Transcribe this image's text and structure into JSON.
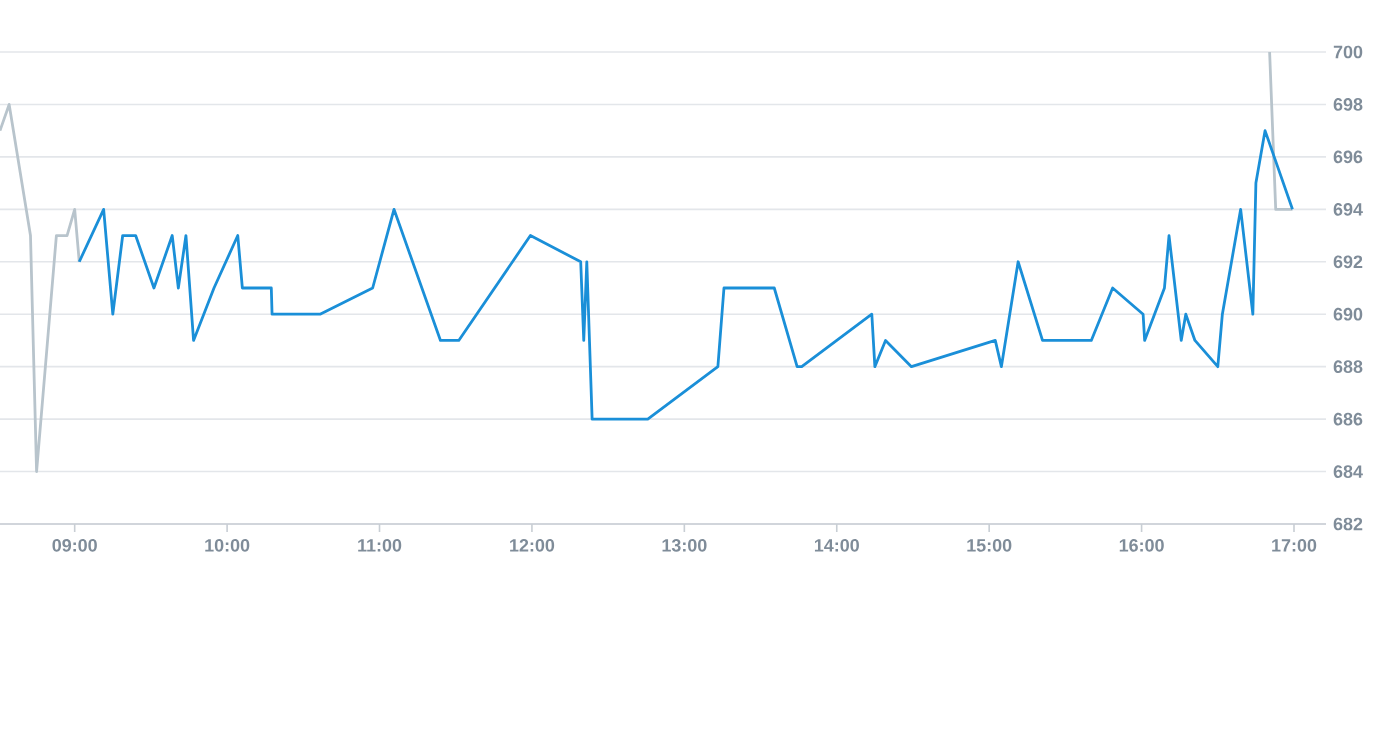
{
  "chart_data": {
    "type": "line",
    "xlim": [
      8.51,
      17.21
    ],
    "ylim": [
      682,
      700
    ],
    "xticks": [
      {
        "value": 9,
        "label": "09:00"
      },
      {
        "value": 10,
        "label": "10:00"
      },
      {
        "value": 11,
        "label": "11:00"
      },
      {
        "value": 12,
        "label": "12:00"
      },
      {
        "value": 13,
        "label": "13:00"
      },
      {
        "value": 14,
        "label": "14:00"
      },
      {
        "value": 15,
        "label": "15:00"
      },
      {
        "value": 16,
        "label": "16:00"
      },
      {
        "value": 17,
        "label": "17:00"
      }
    ],
    "yticks": [
      682,
      684,
      686,
      688,
      690,
      692,
      694,
      696,
      698,
      700
    ],
    "grid": "y",
    "marker": "none",
    "line_style": "solid",
    "series": [
      {
        "color": "#b8c4cc",
        "x": [
          8.51,
          8.57,
          8.71,
          8.75,
          8.88,
          8.95,
          9.0,
          9.03,
          12.0,
          16.84,
          16.88,
          16.99
        ],
        "values": [
          697,
          698,
          693,
          684,
          693,
          693,
          694,
          692,
          null,
          700,
          694,
          694
        ]
      },
      {
        "color": "#1a8fd8",
        "x": [
          9.03,
          9.19,
          9.25,
          9.315,
          9.4,
          9.52,
          9.64,
          9.68,
          9.73,
          9.78,
          9.914,
          10.07,
          10.1,
          10.29,
          10.295,
          10.61,
          10.955,
          11.095,
          11.4,
          11.52,
          11.99,
          12.32,
          12.34,
          12.36,
          12.395,
          12.76,
          13.22,
          13.26,
          13.59,
          13.74,
          13.77,
          14.23,
          14.25,
          14.32,
          14.49,
          15.04,
          15.08,
          15.19,
          15.35,
          15.67,
          15.81,
          16.01,
          16.02,
          16.15,
          16.18,
          16.26,
          16.29,
          16.35,
          16.5,
          16.53,
          16.65,
          16.73,
          16.75,
          16.81,
          16.99
        ],
        "values": [
          692,
          694,
          690,
          693,
          693,
          691,
          693,
          691,
          693,
          689,
          691,
          693,
          691,
          691,
          690,
          690,
          691,
          694,
          689,
          689,
          693,
          692,
          689,
          692,
          686,
          686,
          688,
          691,
          691,
          688,
          688,
          690,
          688,
          689,
          688,
          689,
          688,
          692,
          689,
          689,
          691,
          690,
          689,
          691,
          693,
          689,
          690,
          689,
          688,
          690,
          694,
          690,
          695,
          697,
          694
        ]
      }
    ]
  }
}
